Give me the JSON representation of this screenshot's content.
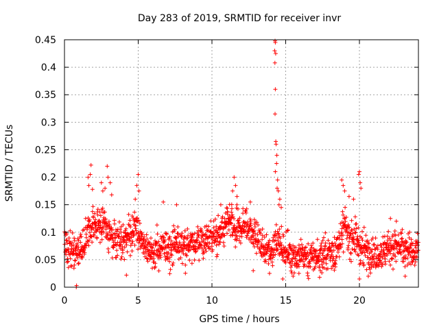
{
  "chart_data": {
    "type": "scatter",
    "title": "Day 283 of 2019, SRMTID for receiver invr",
    "xlabel": "GPS time / hours",
    "ylabel": "SRMTID / TECUs",
    "xlim": [
      0,
      24
    ],
    "ylim": [
      0,
      0.45
    ],
    "grid": true,
    "x_ticks": [
      0,
      5,
      10,
      15,
      20
    ],
    "x_tick_labels": [
      "0",
      "5",
      "10",
      "15",
      "20"
    ],
    "y_ticks": [
      0,
      0.05,
      0.1,
      0.15,
      0.2,
      0.25,
      0.3,
      0.35,
      0.4,
      0.45
    ],
    "y_tick_labels": [
      "0",
      "0.05",
      "0.1",
      "0.15",
      "0.2",
      "0.25",
      "0.3",
      "0.35",
      "0.4",
      "0.45"
    ],
    "marker": "+",
    "color": "#ff0000",
    "series": [
      {
        "name": "invr",
        "profile": {
          "x": [
            0,
            1,
            1.7,
            2.3,
            2.8,
            3.3,
            4,
            4.8,
            5.5,
            6.5,
            7.5,
            8.5,
            9.5,
            10.5,
            11.2,
            11.6,
            12.2,
            12.8,
            13.5,
            14,
            14.3,
            14.8,
            15.5,
            16.5,
            17.5,
            18.5,
            19,
            19.5,
            20,
            20.5,
            21.5,
            22.5,
            23.5,
            24
          ],
          "y": [
            0.07,
            0.07,
            0.1,
            0.12,
            0.11,
            0.085,
            0.08,
            0.11,
            0.07,
            0.065,
            0.08,
            0.075,
            0.085,
            0.095,
            0.12,
            0.1,
            0.115,
            0.1,
            0.07,
            0.06,
            0.09,
            0.07,
            0.06,
            0.055,
            0.055,
            0.07,
            0.11,
            0.09,
            0.075,
            0.065,
            0.065,
            0.075,
            0.065,
            0.07
          ]
        },
        "spread": 0.03,
        "n_points": 1700,
        "extremes": [
          {
            "x": 14.28,
            "y": 0.448
          },
          {
            "x": 14.3,
            "y": 0.445
          },
          {
            "x": 14.25,
            "y": 0.43
          },
          {
            "x": 14.32,
            "y": 0.425
          },
          {
            "x": 14.27,
            "y": 0.408
          },
          {
            "x": 14.3,
            "y": 0.36
          },
          {
            "x": 14.28,
            "y": 0.315
          },
          {
            "x": 14.33,
            "y": 0.265
          },
          {
            "x": 14.35,
            "y": 0.26
          },
          {
            "x": 14.4,
            "y": 0.24
          },
          {
            "x": 14.38,
            "y": 0.225
          },
          {
            "x": 14.3,
            "y": 0.21
          },
          {
            "x": 14.45,
            "y": 0.195
          },
          {
            "x": 14.42,
            "y": 0.18
          },
          {
            "x": 14.5,
            "y": 0.175
          },
          {
            "x": 14.6,
            "y": 0.16
          },
          {
            "x": 14.7,
            "y": 0.145
          },
          {
            "x": 14.55,
            "y": 0.15
          },
          {
            "x": 1.6,
            "y": 0.2
          },
          {
            "x": 1.8,
            "y": 0.222
          },
          {
            "x": 1.75,
            "y": 0.205
          },
          {
            "x": 1.65,
            "y": 0.185
          },
          {
            "x": 1.9,
            "y": 0.178
          },
          {
            "x": 2.5,
            "y": 0.19
          },
          {
            "x": 2.6,
            "y": 0.175
          },
          {
            "x": 2.9,
            "y": 0.22
          },
          {
            "x": 2.95,
            "y": 0.2
          },
          {
            "x": 3.1,
            "y": 0.19
          },
          {
            "x": 2.75,
            "y": 0.18
          },
          {
            "x": 3.2,
            "y": 0.168
          },
          {
            "x": 5.0,
            "y": 0.205
          },
          {
            "x": 4.9,
            "y": 0.185
          },
          {
            "x": 5.05,
            "y": 0.175
          },
          {
            "x": 4.8,
            "y": 0.16
          },
          {
            "x": 11.5,
            "y": 0.2
          },
          {
            "x": 11.6,
            "y": 0.185
          },
          {
            "x": 11.4,
            "y": 0.175
          },
          {
            "x": 11.7,
            "y": 0.165
          },
          {
            "x": 12.6,
            "y": 0.155
          },
          {
            "x": 18.8,
            "y": 0.195
          },
          {
            "x": 18.9,
            "y": 0.185
          },
          {
            "x": 19.0,
            "y": 0.175
          },
          {
            "x": 19.3,
            "y": 0.165
          },
          {
            "x": 20.0,
            "y": 0.21
          },
          {
            "x": 19.95,
            "y": 0.205
          },
          {
            "x": 20.05,
            "y": 0.19
          },
          {
            "x": 20.1,
            "y": 0.18
          },
          {
            "x": 19.6,
            "y": 0.16
          },
          {
            "x": 6.7,
            "y": 0.155
          },
          {
            "x": 7.6,
            "y": 0.15
          },
          {
            "x": 10.6,
            "y": 0.15
          },
          {
            "x": 22.1,
            "y": 0.125
          },
          {
            "x": 22.5,
            "y": 0.12
          },
          {
            "x": 23.4,
            "y": 0.1
          }
        ],
        "lows": [
          {
            "x": 0.8,
            "y": 0.0
          },
          {
            "x": 0.82,
            "y": 0.003
          },
          {
            "x": 14.8,
            "y": 0.015
          },
          {
            "x": 15.5,
            "y": 0.02
          },
          {
            "x": 17.3,
            "y": 0.018
          },
          {
            "x": 20.0,
            "y": 0.015
          },
          {
            "x": 20.6,
            "y": 0.02
          },
          {
            "x": 13.9,
            "y": 0.025
          },
          {
            "x": 4.2,
            "y": 0.022
          },
          {
            "x": 23.1,
            "y": 0.02
          },
          {
            "x": 12.8,
            "y": 0.03
          },
          {
            "x": 15.9,
            "y": 0.025
          }
        ]
      }
    ]
  }
}
